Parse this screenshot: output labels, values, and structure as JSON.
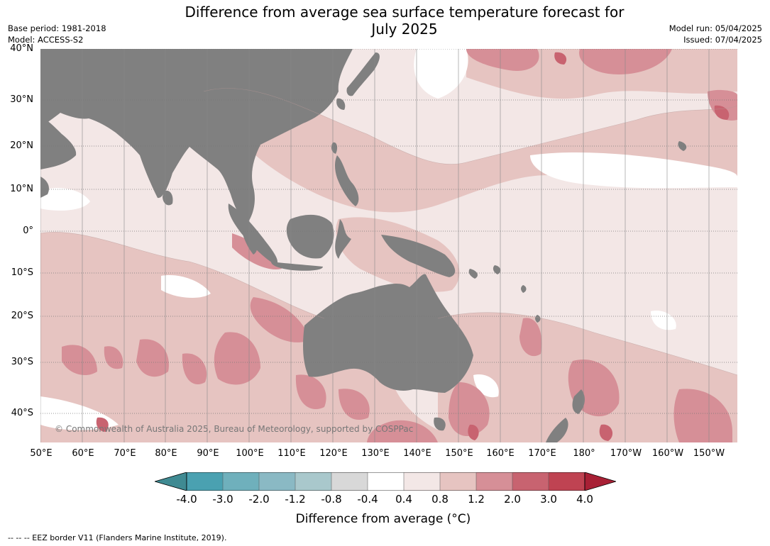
{
  "header": {
    "title_line1": "Difference from average sea surface temperature forecast for",
    "title_line2": "July 2025",
    "base_period": "Base period: 1981-2018",
    "model": "Model: ACCESS-S2",
    "model_run": "Model run: 05/04/2025",
    "issued": "Issued: 07/04/2025"
  },
  "map": {
    "lat_labels": [
      "40°N",
      "30°N",
      "20°N",
      "10°N",
      "0°",
      "10°S",
      "20°S",
      "30°S",
      "40°S"
    ],
    "lon_labels": [
      "50°E",
      "60°E",
      "70°E",
      "80°E",
      "90°E",
      "100°E",
      "110°E",
      "120°E",
      "130°E",
      "140°E",
      "150°E",
      "160°E",
      "170°E",
      "180°",
      "170°W",
      "160°W",
      "150°W"
    ],
    "land_color": "#808080",
    "copyright": "© Commonwealth of Australia 2025, Bureau of Meteorology, supported by COSPPac"
  },
  "colorbar": {
    "labels": [
      "-4.0",
      "-3.0",
      "-2.0",
      "-1.2",
      "-0.8",
      "-0.4",
      "0.4",
      "0.8",
      "1.2",
      "2.0",
      "3.0",
      "4.0"
    ],
    "colors": [
      "#3f8a92",
      "#4aa1b1",
      "#6fb0bc",
      "#8ab9c4",
      "#a9c8cc",
      "#d8d8d8",
      "#ffffff",
      "#f3e7e6",
      "#e6c4c1",
      "#d68f97",
      "#c86370",
      "#bf4352",
      "#a82035"
    ],
    "title": "Difference from average (°C)"
  },
  "footer": {
    "eez_note": "--  --  -- EEZ border V11 (Flanders Marine Institute, 2019)."
  }
}
